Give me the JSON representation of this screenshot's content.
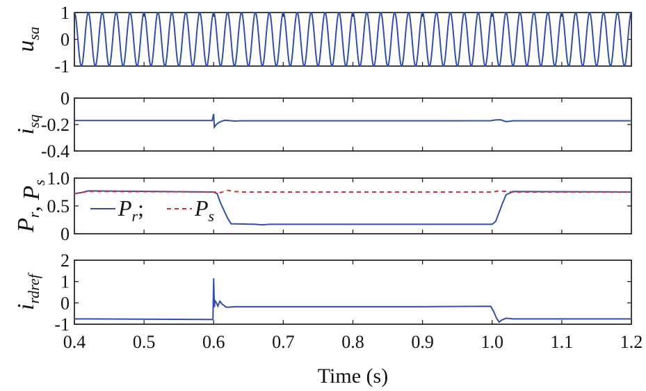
{
  "colors": {
    "pr": "#2f4fa8",
    "ps": "#e0283c",
    "axis": "#111111"
  },
  "xlabel": "Time (s)",
  "chart_data": [
    {
      "type": "line",
      "ylabel": {
        "main": "u",
        "sub": "sa"
      },
      "xlim": [
        0.4,
        1.2
      ],
      "ylim": [
        -1,
        1
      ],
      "yticks": [
        {
          "v": -1,
          "label": "-1"
        },
        {
          "v": 0,
          "label": "0"
        },
        {
          "v": 1,
          "label": "1"
        }
      ],
      "xticks": [],
      "series": [
        {
          "color_key": "pr",
          "dashed": false,
          "func": "sine",
          "amplitude": 1,
          "frequency_hz": 50,
          "phase_deg": 90
        }
      ]
    },
    {
      "type": "line",
      "ylabel": {
        "main": "i",
        "sub": "sq"
      },
      "xlim": [
        0.4,
        1.2
      ],
      "ylim": [
        -0.4,
        0
      ],
      "yticks": [
        {
          "v": -0.4,
          "label": "-0.4"
        },
        {
          "v": -0.2,
          "label": "-0.2"
        },
        {
          "v": 0,
          "label": "0"
        }
      ],
      "xticks": [],
      "series": [
        {
          "color_key": "pr",
          "dashed": false,
          "x": [
            0.4,
            0.598,
            0.6,
            0.601,
            0.603,
            0.606,
            0.61,
            0.616,
            0.622,
            0.63,
            0.64,
            0.7,
            0.8,
            0.9,
            0.998,
            1.005,
            1.012,
            1.02,
            1.03,
            1.05,
            1.2
          ],
          "y": [
            -0.17,
            -0.17,
            -0.12,
            -0.22,
            -0.205,
            -0.19,
            -0.178,
            -0.168,
            -0.17,
            -0.174,
            -0.172,
            -0.172,
            -0.172,
            -0.172,
            -0.171,
            -0.165,
            -0.164,
            -0.178,
            -0.172,
            -0.172,
            -0.172
          ]
        }
      ]
    },
    {
      "type": "line",
      "ylabel": {
        "main": "P",
        "sub": "r",
        "sep": ", ",
        "main2": "P",
        "sub2": "s"
      },
      "xlim": [
        0.4,
        1.2
      ],
      "ylim": [
        0,
        1
      ],
      "yticks": [
        {
          "v": 0,
          "label": "0"
        },
        {
          "v": 0.5,
          "label": "0.5"
        },
        {
          "v": 1,
          "label": "1.0"
        }
      ],
      "xticks": [],
      "legend": [
        {
          "name": "P",
          "sub": "r",
          "color_key": "pr",
          "dashed": false,
          "sep": ";"
        },
        {
          "name": "P",
          "sub": "s",
          "color_key": "ps",
          "dashed": true,
          "sep": ""
        }
      ],
      "series": [
        {
          "color_key": "pr",
          "dashed": false,
          "x": [
            0.4,
            0.41,
            0.42,
            0.6,
            0.605,
            0.61,
            0.62,
            0.625,
            0.66,
            0.67,
            0.68,
            1.0,
            1.005,
            1.015,
            1.02,
            1.03,
            1.2
          ],
          "y": [
            0.72,
            0.74,
            0.77,
            0.75,
            0.72,
            0.55,
            0.28,
            0.18,
            0.17,
            0.16,
            0.17,
            0.17,
            0.22,
            0.55,
            0.7,
            0.76,
            0.75
          ]
        },
        {
          "color_key": "ps",
          "dashed": true,
          "x": [
            0.4,
            0.42,
            0.6,
            0.61,
            0.62,
            0.63,
            0.64,
            1.0,
            1.01,
            1.03,
            1.2
          ],
          "y": [
            0.72,
            0.76,
            0.75,
            0.74,
            0.78,
            0.76,
            0.75,
            0.75,
            0.77,
            0.75,
            0.75
          ]
        }
      ]
    },
    {
      "type": "line",
      "ylabel": {
        "main": "i",
        "sub": "rdref"
      },
      "xlim": [
        0.4,
        1.2
      ],
      "ylim": [
        -1,
        2
      ],
      "yticks": [
        {
          "v": -1,
          "label": "-1"
        },
        {
          "v": 0,
          "label": "0"
        },
        {
          "v": 1,
          "label": "1"
        },
        {
          "v": 2,
          "label": "2"
        }
      ],
      "xticks": [
        {
          "v": 0.4,
          "label": "0.4"
        },
        {
          "v": 0.5,
          "label": "0.5"
        },
        {
          "v": 0.6,
          "label": "0.6"
        },
        {
          "v": 0.7,
          "label": "0.7"
        },
        {
          "v": 0.8,
          "label": "0.8"
        },
        {
          "v": 0.9,
          "label": "0.9"
        },
        {
          "v": 1.0,
          "label": "1.0"
        },
        {
          "v": 1.1,
          "label": "1.1"
        },
        {
          "v": 1.2,
          "label": "1.2"
        }
      ],
      "series": [
        {
          "color_key": "pr",
          "dashed": false,
          "x": [
            0.4,
            0.599,
            0.6,
            0.601,
            0.602,
            0.604,
            0.606,
            0.609,
            0.612,
            0.618,
            0.622,
            0.63,
            0.7,
            0.8,
            0.9,
            0.998,
            1.002,
            1.006,
            1.01,
            1.014,
            1.02,
            1.03,
            1.05,
            1.2
          ],
          "y": [
            -0.75,
            -0.78,
            1.15,
            -0.2,
            0.1,
            0.0,
            -0.15,
            0.08,
            -0.05,
            -0.2,
            -0.2,
            -0.18,
            -0.18,
            -0.18,
            -0.18,
            -0.16,
            -0.4,
            -0.7,
            -0.9,
            -0.8,
            -0.72,
            -0.75,
            -0.75,
            -0.75
          ]
        }
      ]
    }
  ]
}
